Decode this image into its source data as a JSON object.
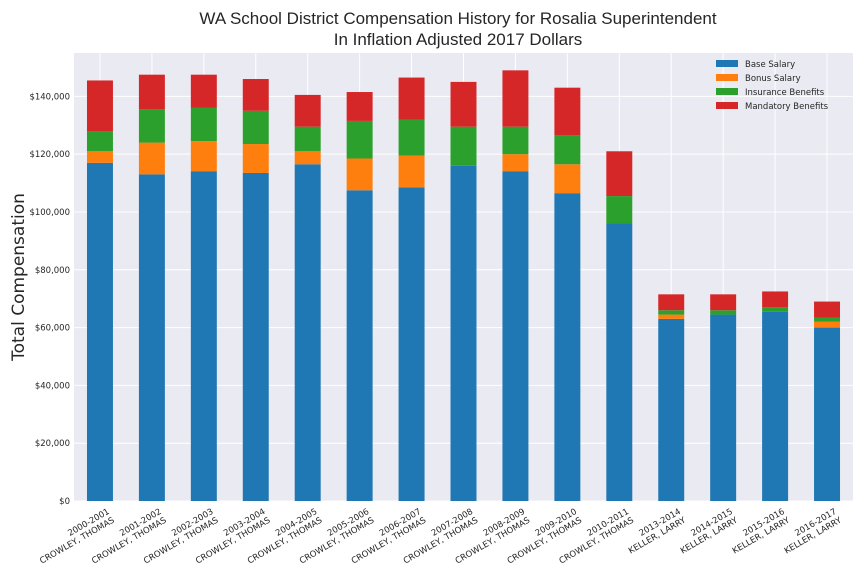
{
  "chart_data": {
    "type": "bar",
    "stacked": true,
    "title": [
      "WA School District Compensation History for Rosalia Superintendent",
      "In Inflation Adjusted 2017 Dollars"
    ],
    "xlabel": "",
    "ylabel": "Total Compensation",
    "ylim": [
      0,
      155000
    ],
    "yticks": [
      "$0",
      "$20,000",
      "$40,000",
      "$60,000",
      "$80,000",
      "$100,000",
      "$120,000",
      "$140,000"
    ],
    "ytick_values": [
      0,
      20000,
      40000,
      60000,
      80000,
      100000,
      120000,
      140000
    ],
    "grid": true,
    "legend_position": "top-right",
    "categories": [
      [
        "2000-2001",
        "CROWLEY, THOMAS"
      ],
      [
        "2001-2002",
        "CROWLEY, THOMAS"
      ],
      [
        "2002-2003",
        "CROWLEY, THOMAS"
      ],
      [
        "2003-2004",
        "CROWLEY, THOMAS"
      ],
      [
        "2004-2005",
        "CROWLEY, THOMAS"
      ],
      [
        "2005-2006",
        "CROWLEY, THOMAS"
      ],
      [
        "2006-2007",
        "CROWLEY, THOMAS"
      ],
      [
        "2007-2008",
        "CROWLEY, THOMAS"
      ],
      [
        "2008-2009",
        "CROWLEY, THOMAS"
      ],
      [
        "2009-2010",
        "CROWLEY, THOMAS"
      ],
      [
        "2010-2011",
        "CROWLEY, THOMAS"
      ],
      [
        "2013-2014",
        "KELLER, LARRY"
      ],
      [
        "2014-2015",
        "KELLER, LARRY"
      ],
      [
        "2015-2016",
        "KELLER, LARRY"
      ],
      [
        "2016-2017",
        "KELLER, LARRY"
      ]
    ],
    "series": [
      {
        "name": "Base Salary",
        "color": "#1f77b4",
        "values": [
          117000,
          113000,
          114000,
          113500,
          116500,
          107500,
          108500,
          116000,
          114000,
          106500,
          96000,
          63000,
          64500,
          65500,
          60000
        ]
      },
      {
        "name": "Bonus Salary",
        "color": "#ff7f0e",
        "values": [
          4000,
          11000,
          10500,
          10000,
          4500,
          11000,
          11000,
          0,
          6000,
          10000,
          0,
          1500,
          0,
          0,
          2000
        ]
      },
      {
        "name": "Insurance Benefits",
        "color": "#2ca02c",
        "values": [
          7000,
          11500,
          11500,
          11500,
          8500,
          13000,
          12500,
          13500,
          9500,
          10000,
          9500,
          1500,
          1500,
          1500,
          1500
        ]
      },
      {
        "name": "Mandatory Benefits",
        "color": "#d62728",
        "values": [
          17500,
          12000,
          11500,
          11000,
          11000,
          10000,
          14500,
          15500,
          19500,
          16500,
          15500,
          5500,
          5500,
          5500,
          5500
        ]
      }
    ]
  }
}
